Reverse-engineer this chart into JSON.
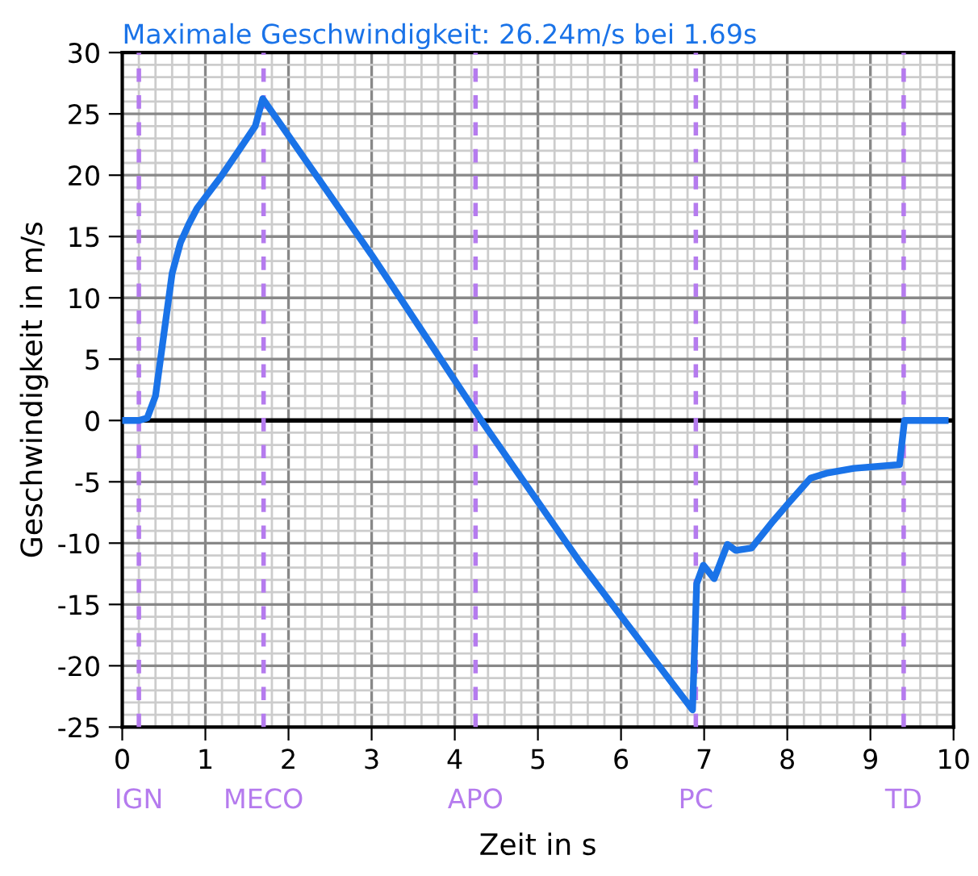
{
  "chart_data": {
    "type": "line",
    "title": "Maximale Geschwindigkeit: 26.24m/s bei 1.69s",
    "xlabel": "Zeit in s",
    "ylabel": "Geschwindigkeit in m/s",
    "series": [
      {
        "color": "#1a73e8",
        "x": [
          0,
          0.2,
          0.3,
          0.4,
          0.5,
          0.6,
          0.7,
          0.8,
          0.9,
          1.0,
          1.2,
          1.4,
          1.6,
          1.69,
          3,
          4.32,
          5.5,
          6.86,
          6.91,
          6.99,
          7.12,
          7.28,
          7.38,
          7.57,
          7.83,
          8.02,
          8.28,
          8.47,
          8.8,
          9.35,
          9.41,
          9.9
        ],
        "values": [
          0,
          0,
          0.2,
          2,
          7,
          12,
          14.5,
          16,
          17.3,
          18.2,
          20,
          22,
          24,
          26.24,
          13.5,
          0,
          -11.5,
          -23.6,
          -13.3,
          -11.8,
          -12.9,
          -10.1,
          -10.6,
          -10.4,
          -8.2,
          -6.7,
          -4.7,
          -4.3,
          -3.9,
          -3.6,
          0,
          0
        ]
      }
    ],
    "xlim": [
      0,
      10
    ],
    "xticks": [
      0,
      1,
      2,
      3,
      4,
      5,
      6,
      7,
      8,
      9,
      10
    ],
    "ylim": [
      -25,
      30
    ],
    "yticks": [
      -25,
      -20,
      -15,
      -10,
      -5,
      0,
      5,
      10,
      15,
      20,
      25,
      30
    ],
    "ref_lines": [
      {
        "axis": "y",
        "value": 0,
        "color": "#000000",
        "line_style": "solid"
      },
      {
        "axis": "x",
        "value": 0.2,
        "label": "IGN",
        "color": "#b57bee",
        "line_style": "dashed"
      },
      {
        "axis": "x",
        "value": 1.7,
        "label": "MECO",
        "color": "#b57bee",
        "line_style": "dashed"
      },
      {
        "axis": "x",
        "value": 4.25,
        "label": "APO",
        "color": "#b57bee",
        "line_style": "dashed"
      },
      {
        "axis": "x",
        "value": 6.9,
        "label": "PC",
        "color": "#b57bee",
        "line_style": "dashed"
      },
      {
        "axis": "x",
        "value": 9.4,
        "label": "TD",
        "color": "#b57bee",
        "line_style": "dashed"
      }
    ],
    "grid": true,
    "marker": "none",
    "line_style": "solid",
    "legend": false
  }
}
